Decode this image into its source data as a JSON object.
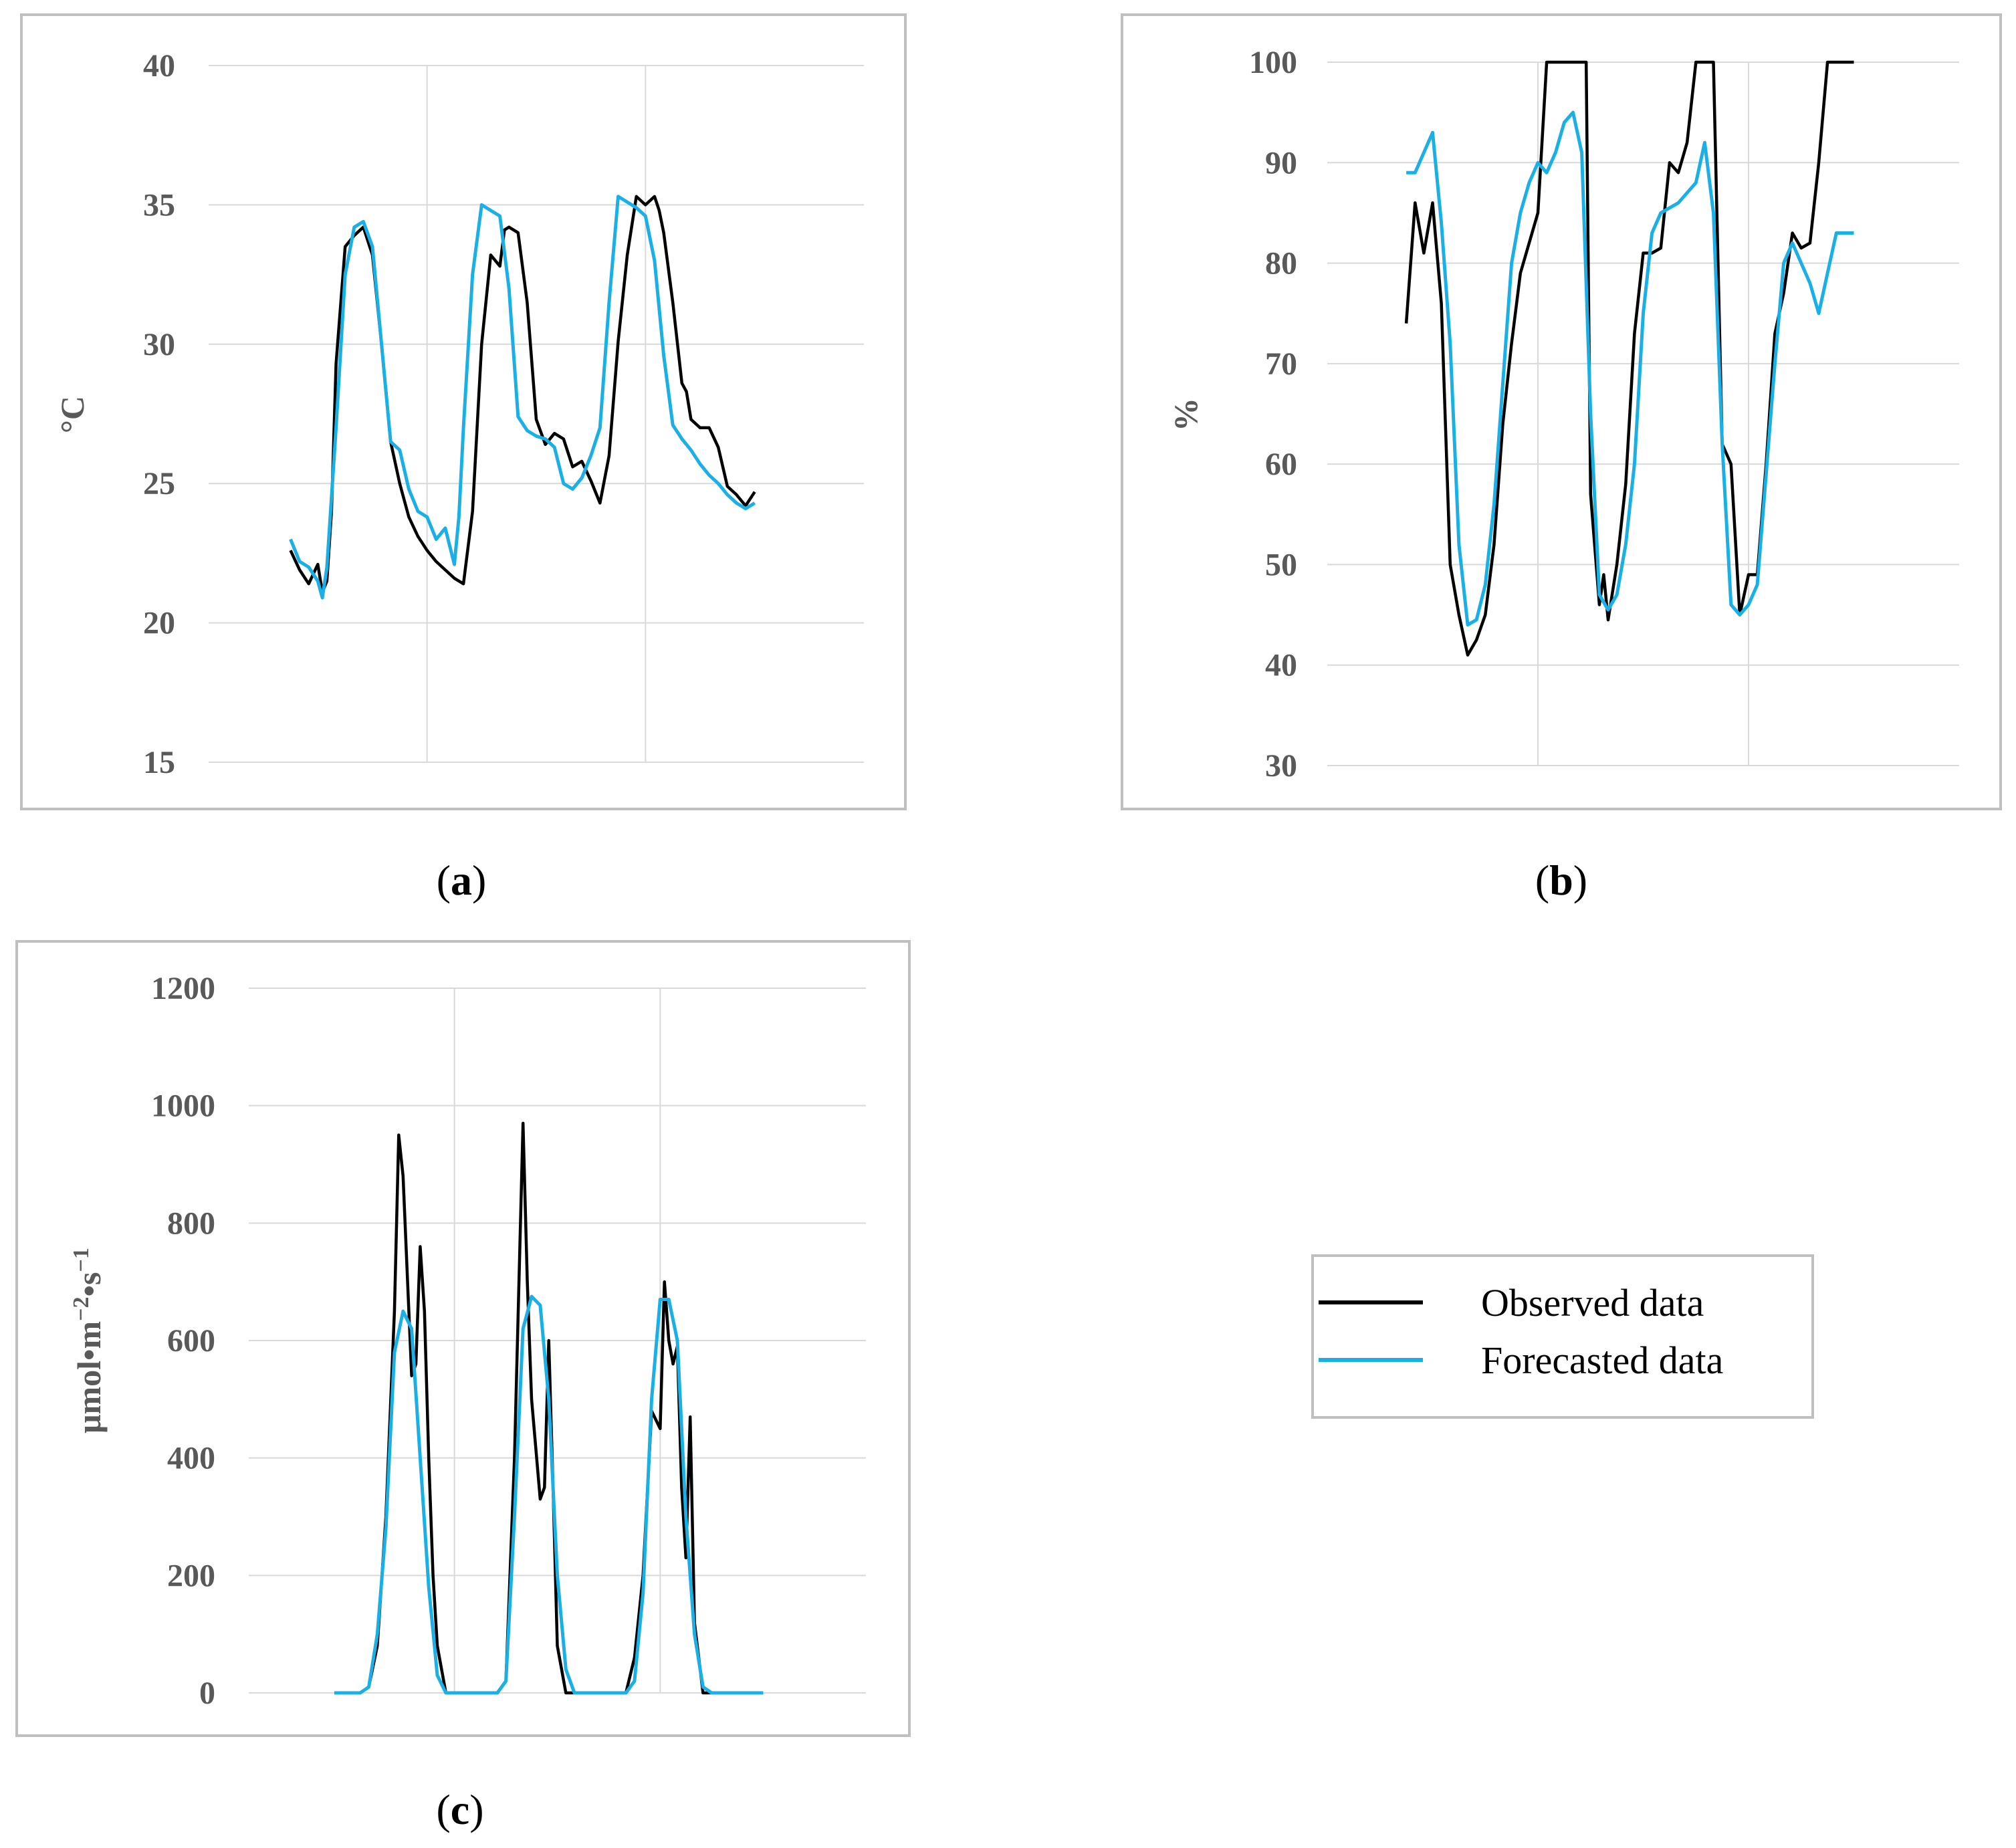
{
  "colors": {
    "observed": "#000000",
    "forecasted": "#1ab0e6",
    "grid": "#d9d9d9",
    "frame": "#bfbfbf",
    "text": "#595959"
  },
  "legend": {
    "observed_label": "Observed data",
    "forecasted_label": "Forecasted data"
  },
  "chart_data": [
    {
      "id": "a",
      "type": "line",
      "panel_label": "a",
      "ylabel": "°C",
      "ylim": [
        15,
        40
      ],
      "yticks": [
        15,
        20,
        25,
        30,
        35,
        40
      ],
      "xlim": [
        0,
        72
      ],
      "x_day_lines": [
        24,
        48
      ],
      "series": [
        {
          "name": "Observed data",
          "x": [
            9,
            10,
            11,
            12,
            12.5,
            13,
            13.5,
            14,
            15,
            16,
            17,
            18,
            19,
            20,
            21,
            22,
            23,
            24,
            25,
            26,
            27,
            28,
            29,
            30,
            31,
            32,
            32.5,
            33,
            34,
            35,
            36,
            37,
            38,
            39,
            40,
            41,
            42,
            43,
            44,
            45,
            46,
            47,
            48,
            49,
            49.5,
            50,
            51,
            52,
            52.5,
            53,
            54,
            55,
            56,
            57,
            58,
            59,
            60
          ],
          "y": [
            22.6,
            21.9,
            21.4,
            22.1,
            21.1,
            21.5,
            24,
            29.3,
            33.5,
            33.9,
            34.2,
            33.2,
            30,
            26.5,
            25,
            23.8,
            23.1,
            22.6,
            22.2,
            21.9,
            21.6,
            21.4,
            24,
            30,
            33.2,
            32.8,
            34.1,
            34.2,
            34,
            31.5,
            27.3,
            26.4,
            26.8,
            26.6,
            25.6,
            25.8,
            25.1,
            24.3,
            26,
            30.1,
            33.2,
            35.3,
            35,
            35.3,
            34.8,
            34,
            31.5,
            28.6,
            28.3,
            27.3,
            27,
            27,
            26.3,
            24.9,
            24.6,
            24.2,
            24.7
          ]
        },
        {
          "name": "Forecasted data",
          "x": [
            9,
            10,
            11,
            12,
            12.5,
            13,
            14,
            15,
            16,
            17,
            18,
            19,
            20,
            21,
            22,
            23,
            24,
            25,
            26,
            27,
            27.5,
            28,
            29,
            30,
            31,
            32,
            33,
            34,
            35,
            36,
            37,
            38,
            39,
            40,
            41,
            42,
            43,
            44,
            45,
            46,
            47,
            48,
            49,
            50,
            51,
            52,
            53,
            54,
            55,
            56,
            57,
            58,
            59,
            60
          ],
          "y": [
            23,
            22.2,
            22,
            21.5,
            20.9,
            22,
            27,
            32.5,
            34.2,
            34.4,
            33.5,
            30,
            26.5,
            26.2,
            24.8,
            24,
            23.8,
            23,
            23.4,
            22.1,
            23.8,
            27,
            32.5,
            35,
            34.8,
            34.6,
            32,
            27.4,
            26.9,
            26.7,
            26.6,
            26.3,
            25,
            24.8,
            25.2,
            26,
            27,
            31.5,
            35.3,
            35.1,
            34.9,
            34.6,
            33,
            29.6,
            27.1,
            26.6,
            26.2,
            25.7,
            25.3,
            25,
            24.6,
            24.3,
            24.1,
            24.3
          ]
        }
      ]
    },
    {
      "id": "b",
      "type": "line",
      "panel_label": "b",
      "ylabel": "%",
      "ylim": [
        30,
        100
      ],
      "yticks": [
        30,
        40,
        50,
        60,
        70,
        80,
        90,
        100
      ],
      "xlim": [
        0,
        72
      ],
      "x_day_lines": [
        24,
        48
      ],
      "series": [
        {
          "name": "Observed data",
          "x": [
            9,
            10,
            11,
            12,
            13,
            14,
            15,
            16,
            17,
            18,
            19,
            20,
            21,
            22,
            23,
            24,
            25,
            26,
            26.5,
            27,
            28,
            29,
            29.5,
            30,
            31,
            31.5,
            32,
            33,
            34,
            35,
            36,
            37,
            38,
            39,
            40,
            41,
            42,
            43,
            44,
            45,
            46,
            47,
            48,
            49,
            50,
            51,
            52,
            53,
            54,
            55,
            56,
            57,
            58,
            59,
            60
          ],
          "y": [
            74,
            86,
            81,
            86,
            76,
            50,
            45,
            41,
            42.5,
            45,
            52,
            64,
            72,
            79,
            82,
            85,
            100,
            100,
            100,
            100,
            100,
            100,
            100,
            57,
            46,
            49,
            44.5,
            50,
            58,
            73,
            81,
            81,
            81.5,
            90,
            89,
            92,
            100,
            100,
            100,
            62,
            60,
            45,
            49,
            49,
            60,
            73,
            77,
            83,
            81.5,
            82,
            90,
            100,
            100,
            100,
            100
          ]
        },
        {
          "name": "Forecasted data",
          "x": [
            9,
            10,
            11,
            12,
            13,
            14,
            15,
            16,
            17,
            18,
            19,
            20,
            21,
            22,
            23,
            24,
            25,
            26,
            27,
            28,
            29,
            30,
            31,
            32,
            33,
            34,
            35,
            36,
            37,
            38,
            39,
            40,
            41,
            42,
            43,
            44,
            45,
            46,
            47,
            48,
            49,
            50,
            51,
            52,
            53,
            54,
            55,
            56,
            57,
            58,
            59,
            60
          ],
          "y": [
            89,
            89,
            91,
            93,
            84,
            72,
            52,
            44,
            44.5,
            48,
            56,
            68,
            80,
            85,
            88,
            90,
            89,
            91,
            94,
            95,
            91,
            65,
            47,
            45.5,
            47,
            52,
            60,
            75,
            83,
            85,
            85.5,
            86,
            87,
            88,
            92,
            85,
            62,
            46,
            45,
            46,
            48,
            59,
            70,
            80,
            82,
            80,
            78,
            75,
            79,
            83,
            83,
            83
          ]
        }
      ]
    },
    {
      "id": "c",
      "type": "line",
      "panel_label": "c",
      "ylabel": "μmol•m−2•s−1",
      "ylabel_parts": {
        "base": "μmol•m",
        "exp1": "−2",
        "mid": "•s",
        "exp2": "−1"
      },
      "ylim": [
        0,
        1200
      ],
      "yticks": [
        0,
        200,
        400,
        600,
        800,
        1000,
        1200
      ],
      "xlim": [
        0,
        72
      ],
      "x_day_lines": [
        24,
        48
      ],
      "series": [
        {
          "name": "Observed data",
          "x": [
            10,
            12,
            13,
            14,
            15,
            16,
            17,
            17.5,
            18,
            19,
            19.5,
            20,
            20.5,
            21,
            21.5,
            22,
            23,
            24,
            25,
            26,
            27,
            28,
            29,
            30,
            31,
            32,
            32.5,
            33,
            34,
            34.5,
            35,
            35.5,
            36,
            37,
            38,
            39,
            40,
            41,
            42,
            43,
            44,
            45,
            46,
            47,
            48,
            48.5,
            49,
            49.5,
            50,
            50.5,
            51,
            51.5,
            52,
            53,
            54,
            55,
            56,
            57,
            58,
            59,
            60
          ],
          "y": [
            0,
            0,
            0,
            10,
            80,
            300,
            650,
            950,
            880,
            540,
            560,
            760,
            650,
            400,
            200,
            80,
            0,
            0,
            0,
            0,
            0,
            0,
            0,
            20,
            400,
            970,
            700,
            500,
            330,
            350,
            600,
            350,
            80,
            0,
            0,
            0,
            0,
            0,
            0,
            0,
            0,
            60,
            200,
            480,
            450,
            700,
            600,
            560,
            590,
            350,
            230,
            470,
            120,
            0,
            0,
            0,
            0,
            0,
            0,
            0,
            0
          ]
        },
        {
          "name": "Forecasted data",
          "x": [
            10,
            12,
            13,
            14,
            15,
            16,
            17,
            18,
            19,
            20,
            21,
            22,
            23,
            24,
            25,
            26,
            27,
            28,
            29,
            30,
            31,
            32,
            33,
            34,
            35,
            36,
            37,
            38,
            39,
            40,
            41,
            42,
            43,
            44,
            45,
            46,
            47,
            48,
            49,
            50,
            51,
            52,
            53,
            54,
            55,
            56,
            57,
            58,
            59,
            60
          ],
          "y": [
            0,
            0,
            0,
            10,
            100,
            280,
            580,
            650,
            620,
            400,
            180,
            30,
            0,
            0,
            0,
            0,
            0,
            0,
            0,
            20,
            300,
            620,
            675,
            660,
            500,
            200,
            40,
            0,
            0,
            0,
            0,
            0,
            0,
            0,
            20,
            170,
            500,
            670,
            670,
            600,
            300,
            100,
            10,
            0,
            0,
            0,
            0,
            0,
            0,
            0
          ]
        }
      ]
    }
  ]
}
